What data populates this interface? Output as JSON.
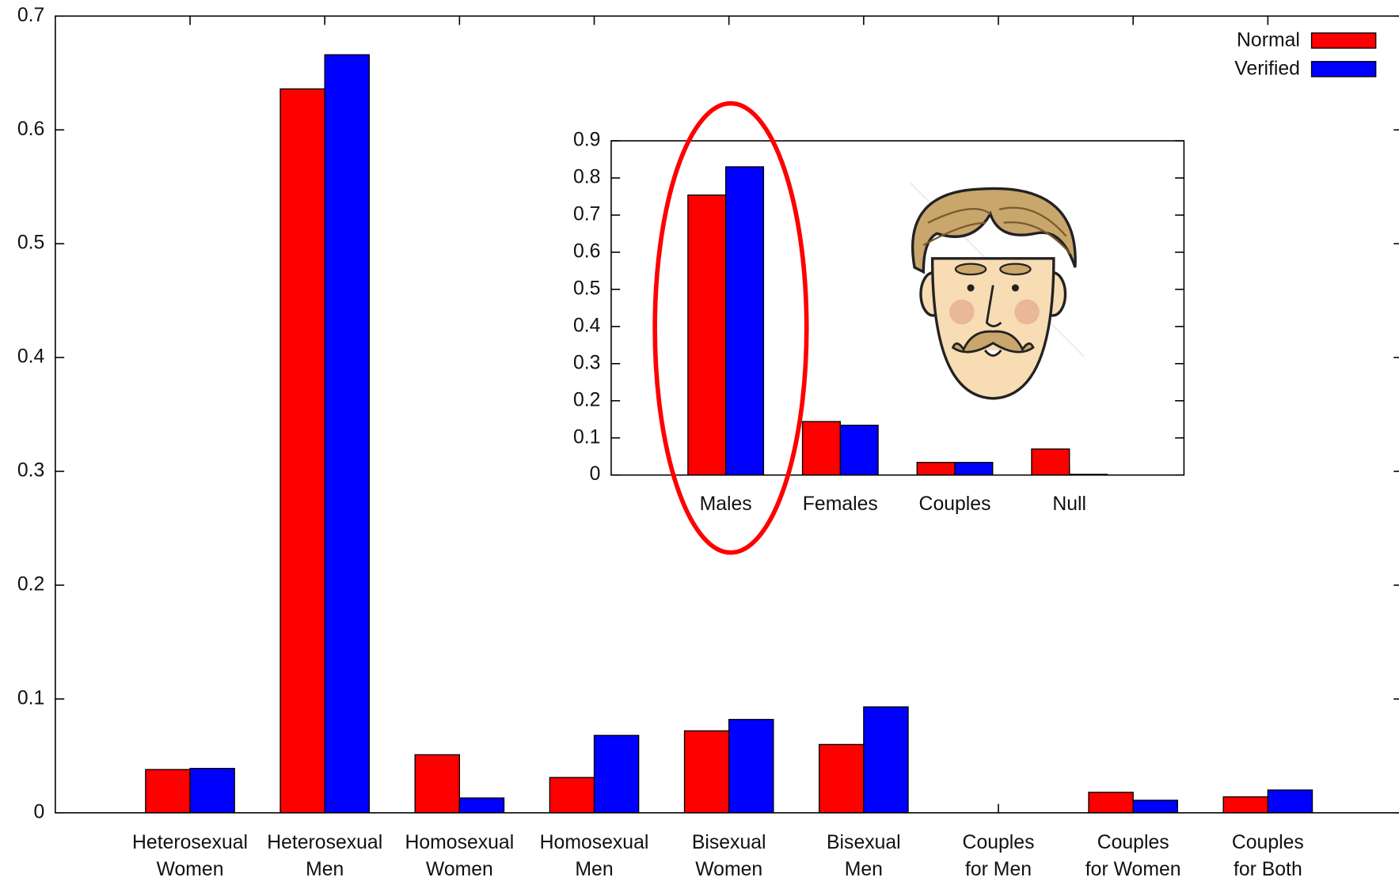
{
  "chart_data": [
    {
      "type": "bar",
      "categories": [
        "Heterosexual\nWomen",
        "Heterosexual\nMen",
        "Homosexual\nWomen",
        "Homosexual\nMen",
        "Bisexual\nWomen",
        "Bisexual\nMen",
        "Couples\nfor Men",
        "Couples\nfor Women",
        "Couples\nfor Both"
      ],
      "series": [
        {
          "name": "Normal",
          "color": "#ff0000",
          "values": [
            0.038,
            0.636,
            0.051,
            0.031,
            0.072,
            0.06,
            0,
            0.018,
            0.014
          ]
        },
        {
          "name": "Verified",
          "color": "#0000ff",
          "values": [
            0.039,
            0.666,
            0.013,
            0.068,
            0.082,
            0.093,
            0,
            0.011,
            0.02
          ]
        }
      ],
      "ylim": [
        0,
        0.7
      ],
      "yticks": [
        0,
        0.1,
        0.2,
        0.3,
        0.4,
        0.5,
        0.6,
        0.7
      ],
      "legend": "upper right"
    },
    {
      "type": "bar",
      "categories": [
        "Males",
        "Females",
        "Couples",
        "Null"
      ],
      "series": [
        {
          "name": "Normal",
          "color": "#ff0000",
          "values": [
            0.754,
            0.144,
            0.034,
            0.07
          ]
        },
        {
          "name": "Verified",
          "color": "#0000ff",
          "values": [
            0.83,
            0.134,
            0.034,
            0.002
          ]
        }
      ],
      "ylim": [
        0,
        0.9
      ],
      "yticks": [
        0,
        0.1,
        0.2,
        0.3,
        0.4,
        0.5,
        0.6,
        0.7,
        0.8,
        0.9
      ]
    }
  ]
}
